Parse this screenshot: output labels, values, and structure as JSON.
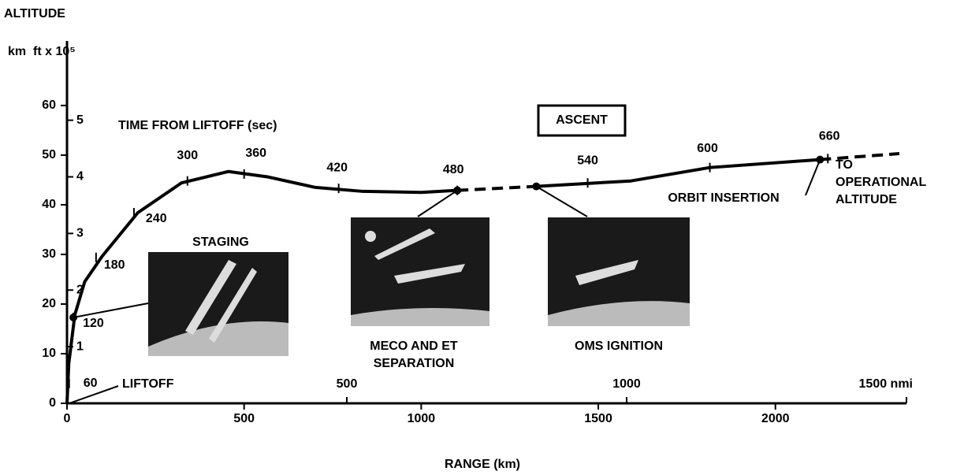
{
  "chart_data": {
    "type": "line",
    "title": "ALTITUDE",
    "ylabel": "km",
    "y2label": "ft x 10⁵",
    "xlabel": "RANGE (km)",
    "subtitle": "TIME FROM LIFTOFF (sec)",
    "box_label": "ASCENT",
    "start_label": "LIFTOFF",
    "xlim": [
      0,
      2370
    ],
    "xticks": [
      0,
      500,
      1000,
      1500,
      2000
    ],
    "x2lim": [
      0,
      1500
    ],
    "x2ticks": [
      500,
      1000,
      {
        "value": 1500,
        "label": "1500 nmi"
      }
    ],
    "ylim": [
      0,
      73
    ],
    "yticks": [
      0,
      10,
      20,
      30,
      40,
      50,
      60
    ],
    "y2lim": [
      0,
      6.4
    ],
    "y2ticks": [
      1,
      2,
      3,
      4,
      5
    ],
    "color": "#000000",
    "series": [
      {
        "dashed": false,
        "x": [
          0,
          5,
          22,
          50,
          100,
          200,
          323,
          456,
          568,
          701,
          835,
          1000,
          1102
        ],
        "values": [
          0,
          8,
          17.8,
          24.5,
          29.7,
          38.4,
          44.4,
          46.7,
          45.6,
          43.5,
          42.7,
          42.5,
          42.9
        ]
      },
      {
        "dashed": true,
        "x": [
          1102,
          1325
        ],
        "values": [
          42.9,
          43.7
        ]
      },
      {
        "dashed": false,
        "x": [
          1325,
          1592,
          1815,
          2126
        ],
        "values": [
          43.7,
          44.8,
          47.5,
          49.1
        ]
      },
      {
        "dashed": true,
        "x": [
          2126,
          2350
        ],
        "values": [
          49.1,
          50.3
        ]
      }
    ],
    "time_marks": [
      {
        "time": 60,
        "x": 6,
        "y": 4
      },
      {
        "time": 120,
        "x": 18,
        "y": 17.3
      },
      {
        "time": 180,
        "x": 82,
        "y": 29.4
      },
      {
        "time": 240,
        "x": 189,
        "y": 38.4
      },
      {
        "time": 300,
        "x": 340,
        "y": 44.8
      },
      {
        "time": 360,
        "x": 500,
        "y": 46.2
      },
      {
        "time": 420,
        "x": 767,
        "y": 43.3
      },
      {
        "time": 480,
        "x": 1102,
        "y": 42.9
      },
      {
        "time": 540,
        "x": 1470,
        "y": 44.4
      },
      {
        "time": 600,
        "x": 1815,
        "y": 47.5
      },
      {
        "time": 660,
        "x": 2148,
        "y": 49.3
      }
    ],
    "events": [
      {
        "label": [
          "STAGING"
        ],
        "x": 18,
        "y": 17.3
      },
      {
        "label": [
          "MECO AND ET",
          "SEPARATION"
        ],
        "x": 1102,
        "y": 42.9
      },
      {
        "label": [
          "OMS IGNITION"
        ],
        "x": 1325,
        "y": 43.7
      },
      {
        "label": [
          "ORBIT INSERTION"
        ],
        "x": 2126,
        "y": 49.1
      }
    ],
    "end_label": [
      "TO",
      "OPERATIONAL",
      "ALTITUDE"
    ]
  }
}
